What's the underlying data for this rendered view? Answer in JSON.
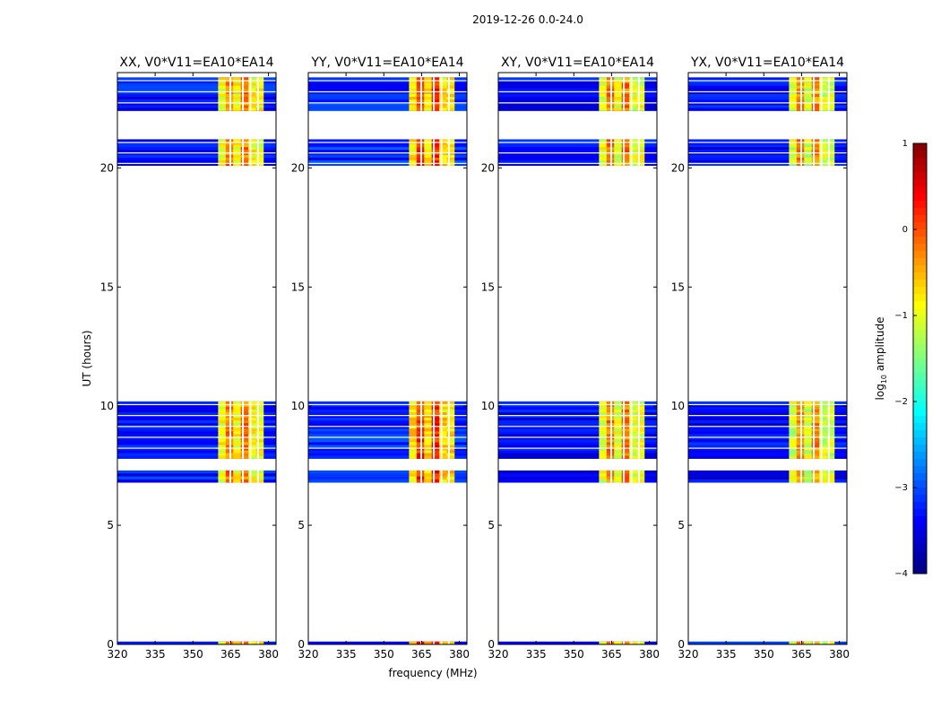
{
  "chart_data": {
    "type": "heatmap",
    "suptitle": "2019-12-26 0.0-24.0",
    "xlabel": "frequency (MHz)",
    "ylabel": "UT (hours)",
    "xlim": [
      320,
      383
    ],
    "ylim": [
      0,
      24
    ],
    "xticks": [
      320,
      335,
      350,
      365,
      380
    ],
    "yticks": [
      0,
      5,
      10,
      15,
      20
    ],
    "panels": [
      {
        "title": "XX, V0*V11=EA10*EA14",
        "bright_level": 0.76,
        "band_level": 0.62,
        "noise_level": 0.14
      },
      {
        "title": "YY, V0*V11=EA10*EA14",
        "bright_level": 0.84,
        "band_level": 0.66,
        "noise_level": 0.16
      },
      {
        "title": "XY, V0*V11=EA10*EA14",
        "bright_level": 0.76,
        "band_level": 0.6,
        "noise_level": 0.12
      },
      {
        "title": "YX, V0*V11=EA10*EA14",
        "bright_level": 0.74,
        "band_level": 0.58,
        "noise_level": 0.13
      }
    ],
    "rfi_band_mhz": [
      360,
      378
    ],
    "flagged_channels_mhz": [
      364.5,
      369.5,
      372.5,
      375.5
    ],
    "observed_time_ranges_hours": [
      [
        0.0,
        0.12
      ],
      [
        6.8,
        7.3
      ],
      [
        7.8,
        10.2
      ],
      [
        20.1,
        21.2
      ],
      [
        22.4,
        23.8
      ]
    ],
    "colorbar": {
      "label": "log10 amplitude",
      "label_main": "log",
      "label_sub": "10",
      "label_tail": " amplitude",
      "range": [
        -4,
        1
      ],
      "ticks": [
        -4,
        -3,
        -2,
        -1,
        0,
        1
      ],
      "tick_labels": [
        "−4",
        "−3",
        "−2",
        "−1",
        "0",
        "1"
      ],
      "colormap": "jet"
    }
  }
}
